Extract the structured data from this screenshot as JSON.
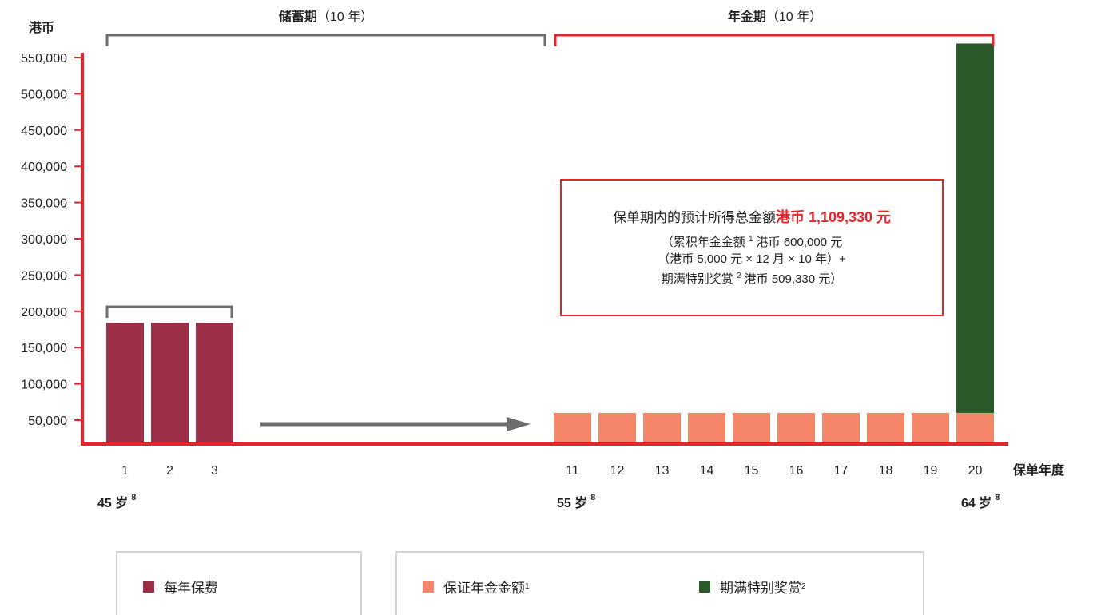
{
  "chart_data": {
    "type": "bar",
    "y_unit": "港币",
    "x_label": "保单年度",
    "y_ticks": [
      50000,
      100000,
      150000,
      200000,
      250000,
      300000,
      350000,
      400000,
      450000,
      500000,
      550000
    ],
    "y_tick_labels": [
      "50,000",
      "100,000",
      "150,000",
      "200,000",
      "250,000",
      "300,000",
      "350,000",
      "400,000",
      "450,000",
      "500,000",
      "550,000"
    ],
    "categories": [
      "1",
      "2",
      "3",
      "11",
      "12",
      "13",
      "14",
      "15",
      "16",
      "17",
      "18",
      "19",
      "20"
    ],
    "series": [
      {
        "name": "每年保费",
        "color": "#9b3048",
        "values": [
          184000,
          184000,
          184000,
          0,
          0,
          0,
          0,
          0,
          0,
          0,
          0,
          0,
          0
        ]
      },
      {
        "name": "保证年金金额",
        "color": "#f4876a",
        "values": [
          0,
          0,
          0,
          60000,
          60000,
          60000,
          60000,
          60000,
          60000,
          60000,
          60000,
          60000,
          60000
        ]
      },
      {
        "name": "期满特别奖赏",
        "color": "#2a5a29",
        "values": [
          0,
          0,
          0,
          0,
          0,
          0,
          0,
          0,
          0,
          0,
          0,
          0,
          509330
        ]
      }
    ],
    "ylim": [
      10000,
      560000
    ],
    "periods": {
      "saving": {
        "name": "储蓄期",
        "suffix": "（10 年）"
      },
      "annuity": {
        "name": "年金期",
        "suffix": "（10 年）"
      }
    },
    "ages": [
      {
        "label": "45 岁",
        "sup": "8",
        "at": "1"
      },
      {
        "label": "55 岁",
        "sup": "8",
        "at": "11"
      },
      {
        "label": "64 岁",
        "sup": "8",
        "at": "20"
      }
    ],
    "annotation": {
      "main_text": "保单期内的预计所得总金额",
      "highlight": "港币 1,109,330 元",
      "line1_a": "（累积年金金额",
      "line1_sup": "1",
      "line1_b": "港币 600,000 元",
      "line2": "（港币 5,000 元 × 12 月 × 10 年）+",
      "line3_a": "期满特别奖赏",
      "line3_sup": "2",
      "line3_b": "港币 509,330 元）"
    },
    "colors": {
      "axis": "#e3262c",
      "bracket_saving": "#6d6d6d",
      "arrow": "#6d6d6d"
    }
  },
  "legend": {
    "premium": {
      "label": "每年保费",
      "sup": ""
    },
    "annuity": {
      "label": "保证年金金额",
      "sup": "1"
    },
    "bonus": {
      "label": "期满特别奖赏",
      "sup": "2"
    }
  }
}
